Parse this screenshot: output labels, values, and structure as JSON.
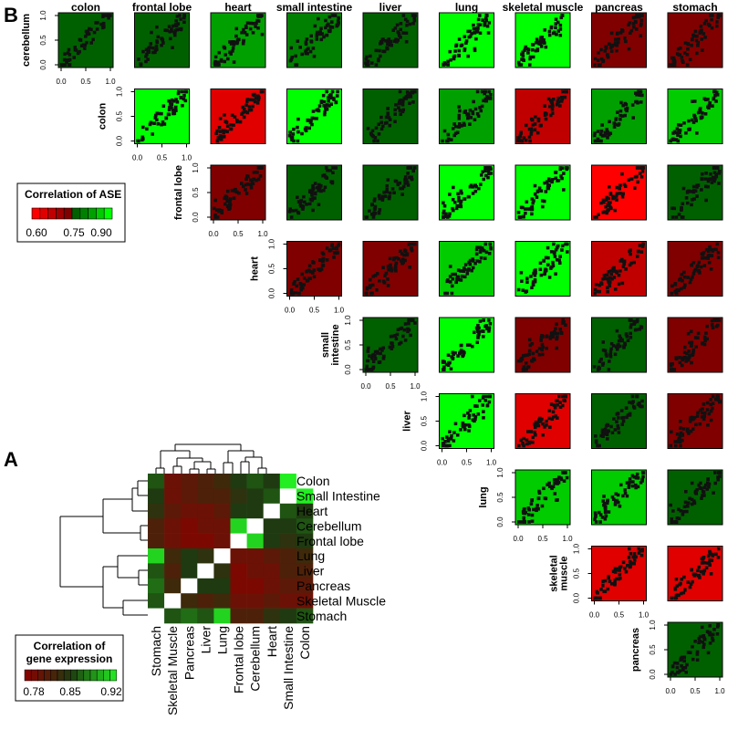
{
  "panels": {
    "a_letter": "A",
    "b_letter": "B"
  },
  "legend_b": {
    "title": "Correlation of ASE",
    "ticks": [
      "0.60",
      "0.75",
      "0.90"
    ]
  },
  "legend_a": {
    "title_line1": "Correlation of",
    "title_line2": "gene expression",
    "ticks": [
      "0.78",
      "0.85",
      "0.92"
    ]
  },
  "palette": {
    "red": [
      "#ff0000",
      "#e00000",
      "#c00000",
      "#a00000",
      "#800000"
    ],
    "green": [
      "#006000",
      "#008000",
      "#00a000",
      "#00cc00",
      "#00ff00"
    ],
    "hm_low": "#8b0000",
    "hm_mid": "#1f3a10",
    "hm_high": "#22ee22"
  },
  "chart_data": [
    {
      "type": "scatter",
      "name": "ASE pairwise scatter matrix",
      "columns": [
        "colon",
        "frontal lobe",
        "heart",
        "small intestine",
        "liver",
        "lung",
        "skeletal muscle",
        "pancreas",
        "stomach"
      ],
      "rows": [
        "cerebellum",
        "colon",
        "frontal lobe",
        "heart",
        "small intestine",
        "liver",
        "lung",
        "skeletal muscle",
        "pancreas"
      ],
      "row_label_lines": [
        [
          "cerebellum"
        ],
        [
          "colon"
        ],
        [
          "frontal lobe"
        ],
        [
          "heart"
        ],
        [
          "small",
          "intestine"
        ],
        [
          "liver"
        ],
        [
          "lung"
        ],
        [
          "skeletal",
          "muscle"
        ],
        [
          "pancreas"
        ]
      ],
      "axis_ticks": [
        "0.0",
        "0.5",
        "1.0"
      ],
      "xlim": [
        0,
        1
      ],
      "ylim": [
        0,
        1
      ],
      "correlation_colors": [
        [
          "#006000",
          "#006000",
          "#00a000",
          "#008000",
          "#006000",
          "#00ff00",
          "#00ff00",
          "#800000",
          "#800000"
        ],
        [
          null,
          "#00ff00",
          "#e00000",
          "#00ff00",
          "#006000",
          "#00a000",
          "#c00000",
          "#00a000",
          "#00cc00"
        ],
        [
          null,
          null,
          "#800000",
          "#006000",
          "#006000",
          "#00ff00",
          "#00ff00",
          "#ff0000",
          "#006000"
        ],
        [
          null,
          null,
          null,
          "#800000",
          "#800000",
          "#00cc00",
          "#00ff00",
          "#c00000",
          "#800000"
        ],
        [
          null,
          null,
          null,
          null,
          "#006000",
          "#00ff00",
          "#800000",
          "#006000",
          "#800000"
        ],
        [
          null,
          null,
          null,
          null,
          null,
          "#00ff00",
          "#e00000",
          "#006000",
          "#800000"
        ],
        [
          null,
          null,
          null,
          null,
          null,
          null,
          "#00cc00",
          "#00cc00",
          "#006000"
        ],
        [
          null,
          null,
          null,
          null,
          null,
          null,
          null,
          "#e00000",
          "#e00000"
        ],
        [
          null,
          null,
          null,
          null,
          null,
          null,
          null,
          null,
          "#006000"
        ]
      ]
    },
    {
      "type": "heatmap",
      "name": "Correlation of gene expression",
      "row_labels": [
        "Colon",
        "Small Intestine",
        "Heart",
        "Cerebellum",
        "Frontal lobe",
        "Lung",
        "Liver",
        "Pancreas",
        "Skeletal Muscle",
        "Stomach"
      ],
      "col_labels": [
        "Stomach",
        "Skeletal Muscle",
        "Pancreas",
        "Liver",
        "Lung",
        "Frontal lobe",
        "Cerebellum",
        "Heart",
        "Small Intestine",
        "Colon"
      ],
      "value_range": [
        0.78,
        0.92
      ],
      "values": [
        [
          0.86,
          0.8,
          0.81,
          0.82,
          0.83,
          0.85,
          0.86,
          0.85,
          0.92,
          null
        ],
        [
          0.85,
          0.8,
          0.81,
          0.82,
          0.82,
          0.84,
          0.85,
          0.86,
          null,
          0.92
        ],
        [
          0.84,
          0.81,
          0.8,
          0.8,
          0.81,
          0.85,
          0.85,
          null,
          0.86,
          0.85
        ],
        [
          0.82,
          0.8,
          0.79,
          0.8,
          0.8,
          0.91,
          null,
          0.85,
          0.85,
          0.86
        ],
        [
          0.82,
          0.8,
          0.79,
          0.79,
          0.8,
          null,
          0.91,
          0.85,
          0.84,
          0.85
        ],
        [
          0.91,
          0.83,
          0.85,
          0.84,
          null,
          0.8,
          0.8,
          0.81,
          0.82,
          0.83
        ],
        [
          0.86,
          0.82,
          0.85,
          null,
          0.84,
          0.79,
          0.8,
          0.8,
          0.82,
          0.82
        ],
        [
          0.87,
          0.83,
          null,
          0.85,
          0.85,
          0.79,
          0.79,
          0.8,
          0.81,
          0.81
        ],
        [
          0.86,
          null,
          0.83,
          0.82,
          0.83,
          0.8,
          0.8,
          0.81,
          0.8,
          0.8
        ],
        [
          null,
          0.86,
          0.87,
          0.86,
          0.91,
          0.82,
          0.82,
          0.84,
          0.85,
          0.86
        ]
      ]
    }
  ]
}
